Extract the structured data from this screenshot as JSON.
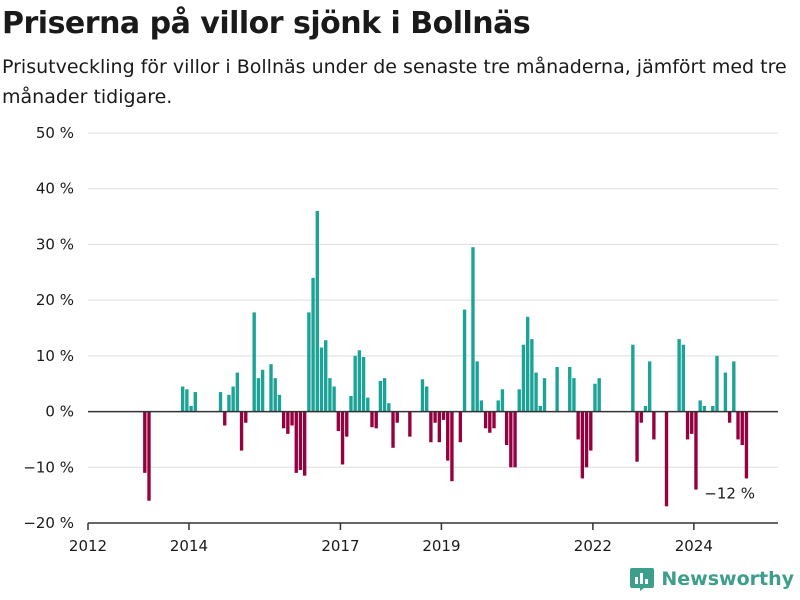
{
  "chart_data": {
    "type": "bar",
    "title": "Priserna på villor sjönk i Bollnäs",
    "subtitle": "Prisutveckling för villor i Bollnäs under de senaste tre månaderna, jämfört med tre månader tidigare.",
    "xlabel": "",
    "ylabel": "",
    "ylim": [
      -20,
      50
    ],
    "y_ticks": [
      -20,
      -10,
      0,
      10,
      20,
      30,
      40,
      50
    ],
    "y_tick_labels": [
      "−20 %",
      "−10 %",
      "0 %",
      "10 %",
      "20 %",
      "30 %",
      "40 %",
      "50 %"
    ],
    "x_tick_labels": [
      {
        "label": "2012",
        "date": "2012-01"
      },
      {
        "label": "2014",
        "date": "2014-01"
      },
      {
        "label": "2017",
        "date": "2017-01"
      },
      {
        "label": "2019",
        "date": "2019-01"
      },
      {
        "label": "2022",
        "date": "2022-01"
      },
      {
        "label": "2024",
        "date": "2024-01"
      }
    ],
    "x_range": [
      "2012-01",
      "2025-09"
    ],
    "positive_color": "#1aa396",
    "negative_color": "#95003f",
    "grid": true,
    "annotation": {
      "text": "−12 %",
      "date": "2024-09"
    },
    "values": [
      {
        "date": "2013-02",
        "value": -11
      },
      {
        "date": "2013-03",
        "value": -16
      },
      {
        "date": "2013-11",
        "value": 4.5
      },
      {
        "date": "2013-12",
        "value": 4
      },
      {
        "date": "2014-01",
        "value": 1
      },
      {
        "date": "2014-02",
        "value": 3.5
      },
      {
        "date": "2014-08",
        "value": 3.5
      },
      {
        "date": "2014-09",
        "value": -2.5
      },
      {
        "date": "2014-10",
        "value": 3
      },
      {
        "date": "2014-11",
        "value": 4.5
      },
      {
        "date": "2014-12",
        "value": 7
      },
      {
        "date": "2015-01",
        "value": -7
      },
      {
        "date": "2015-02",
        "value": -2
      },
      {
        "date": "2015-04",
        "value": 17.8
      },
      {
        "date": "2015-05",
        "value": 6
      },
      {
        "date": "2015-06",
        "value": 7.5
      },
      {
        "date": "2015-08",
        "value": 8.5
      },
      {
        "date": "2015-09",
        "value": 6
      },
      {
        "date": "2015-10",
        "value": 3
      },
      {
        "date": "2015-11",
        "value": -3
      },
      {
        "date": "2015-12",
        "value": -4
      },
      {
        "date": "2016-01",
        "value": -2.5
      },
      {
        "date": "2016-02",
        "value": -11
      },
      {
        "date": "2016-03",
        "value": -10.5
      },
      {
        "date": "2016-04",
        "value": -11.5
      },
      {
        "date": "2016-05",
        "value": 17.8
      },
      {
        "date": "2016-06",
        "value": 24
      },
      {
        "date": "2016-07",
        "value": 36
      },
      {
        "date": "2016-08",
        "value": 11.5
      },
      {
        "date": "2016-09",
        "value": 12.8
      },
      {
        "date": "2016-10",
        "value": 6
      },
      {
        "date": "2016-11",
        "value": 4.5
      },
      {
        "date": "2016-12",
        "value": -3.5
      },
      {
        "date": "2017-01",
        "value": -9.5
      },
      {
        "date": "2017-02",
        "value": -4.5
      },
      {
        "date": "2017-03",
        "value": 2.8
      },
      {
        "date": "2017-04",
        "value": 10
      },
      {
        "date": "2017-05",
        "value": 11
      },
      {
        "date": "2017-06",
        "value": 9.8
      },
      {
        "date": "2017-07",
        "value": 2.5
      },
      {
        "date": "2017-08",
        "value": -2.8
      },
      {
        "date": "2017-09",
        "value": -3
      },
      {
        "date": "2017-10",
        "value": 5.5
      },
      {
        "date": "2017-11",
        "value": 6
      },
      {
        "date": "2017-12",
        "value": 1.5
      },
      {
        "date": "2018-01",
        "value": -6.5
      },
      {
        "date": "2018-02",
        "value": -2
      },
      {
        "date": "2018-05",
        "value": -4.5
      },
      {
        "date": "2018-08",
        "value": 5.8
      },
      {
        "date": "2018-09",
        "value": 4.5
      },
      {
        "date": "2018-10",
        "value": -5.5
      },
      {
        "date": "2018-11",
        "value": -2
      },
      {
        "date": "2018-12",
        "value": -5.5
      },
      {
        "date": "2019-01",
        "value": -1.5
      },
      {
        "date": "2019-02",
        "value": -8.8
      },
      {
        "date": "2019-03",
        "value": -12.5
      },
      {
        "date": "2019-05",
        "value": -5.5
      },
      {
        "date": "2019-06",
        "value": 18.3
      },
      {
        "date": "2019-08",
        "value": 29.5
      },
      {
        "date": "2019-09",
        "value": 9
      },
      {
        "date": "2019-10",
        "value": 2
      },
      {
        "date": "2019-11",
        "value": -3
      },
      {
        "date": "2019-12",
        "value": -3.8
      },
      {
        "date": "2020-01",
        "value": -3
      },
      {
        "date": "2020-02",
        "value": 2
      },
      {
        "date": "2020-03",
        "value": 4
      },
      {
        "date": "2020-04",
        "value": -6
      },
      {
        "date": "2020-05",
        "value": -10
      },
      {
        "date": "2020-06",
        "value": -10
      },
      {
        "date": "2020-07",
        "value": 4
      },
      {
        "date": "2020-08",
        "value": 12
      },
      {
        "date": "2020-09",
        "value": 17
      },
      {
        "date": "2020-10",
        "value": 13
      },
      {
        "date": "2020-11",
        "value": 7
      },
      {
        "date": "2020-12",
        "value": 1
      },
      {
        "date": "2021-01",
        "value": 6
      },
      {
        "date": "2021-04",
        "value": 8
      },
      {
        "date": "2021-07",
        "value": 8
      },
      {
        "date": "2021-08",
        "value": 6
      },
      {
        "date": "2021-09",
        "value": -5
      },
      {
        "date": "2021-10",
        "value": -12
      },
      {
        "date": "2021-11",
        "value": -10
      },
      {
        "date": "2021-12",
        "value": -7
      },
      {
        "date": "2022-01",
        "value": 5
      },
      {
        "date": "2022-02",
        "value": 6
      },
      {
        "date": "2022-10",
        "value": 12
      },
      {
        "date": "2022-11",
        "value": -9
      },
      {
        "date": "2022-12",
        "value": -2
      },
      {
        "date": "2023-01",
        "value": 1
      },
      {
        "date": "2023-02",
        "value": 9
      },
      {
        "date": "2023-03",
        "value": -5
      },
      {
        "date": "2023-06",
        "value": -17
      },
      {
        "date": "2023-09",
        "value": 13
      },
      {
        "date": "2023-10",
        "value": 12
      },
      {
        "date": "2023-11",
        "value": -5
      },
      {
        "date": "2023-12",
        "value": -4
      },
      {
        "date": "2024-01",
        "value": -14
      },
      {
        "date": "2024-02",
        "value": 2
      },
      {
        "date": "2024-03",
        "value": 1
      },
      {
        "date": "2024-05",
        "value": 1
      },
      {
        "date": "2024-06",
        "value": 10
      },
      {
        "date": "2024-08",
        "value": 7
      },
      {
        "date": "2024-09",
        "value": -2
      },
      {
        "date": "2024-10",
        "value": 9
      },
      {
        "date": "2024-11",
        "value": -5
      },
      {
        "date": "2024-12",
        "value": -6
      },
      {
        "date": "2025-01",
        "value": -12
      }
    ]
  },
  "brand": {
    "name": "Newsworthy",
    "icon": "bar-chart-logo-icon",
    "color": "#3d9e8c"
  }
}
